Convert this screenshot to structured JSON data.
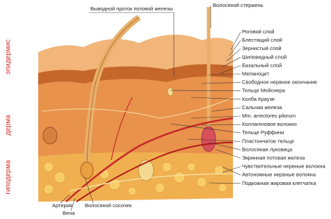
{
  "side_labels": [
    "эпидермис",
    "дерма",
    "гиподерма"
  ],
  "top_labels": [
    "Выводной проток потовой железы",
    "Волосяной стержень"
  ],
  "right_labels": [
    "Роговой слой",
    "Блестящий слой",
    "Зернистый слой",
    "Шиповидный слой",
    "Базальный слой",
    "Меланоцит",
    "Свободное нервное окончание",
    "Тельце Мейснера",
    "Колба Краузе",
    "Сальная железа",
    "Mm. arrectores pilorum",
    "Коллагеновое волокно",
    "Тельце Руффини",
    "Пластинчатое тельце",
    "Волосяная луковица",
    "Экринная потовая железа",
    "Чувствительные нервные волокна",
    "Автономные нервные волокна",
    "Подкожная жировая клетчатка"
  ],
  "bottom_labels": [
    "Артерия",
    "Вена",
    "Волосяной сосочек"
  ]
}
